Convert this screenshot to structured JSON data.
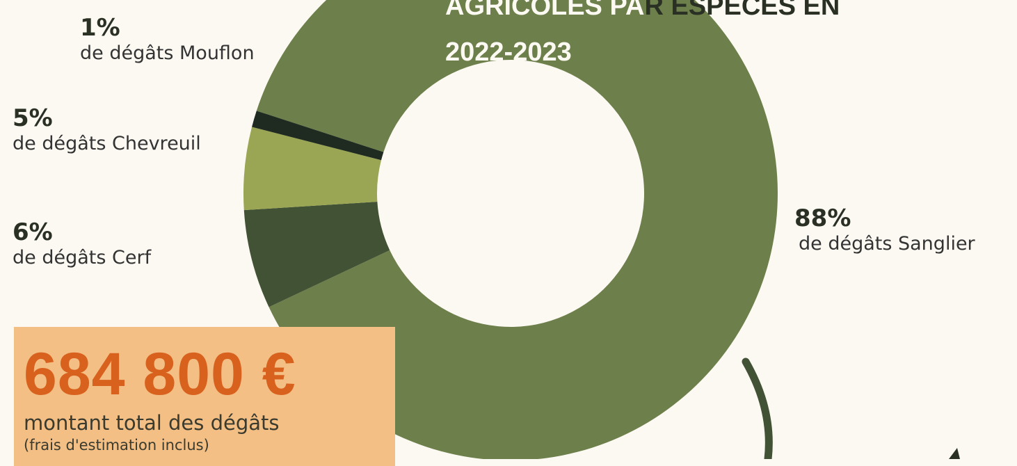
{
  "title": {
    "line1_head": "AGRICOLES PA",
    "line1_tail": "R ESPÈCES EN",
    "line2": "2022-2023"
  },
  "chart_data": {
    "type": "pie",
    "variant": "donut",
    "slices": [
      {
        "name": "Sanglier",
        "value": 88,
        "pct_label": "88%",
        "description": "de dégâts Sanglier",
        "color": "#6d7f4b"
      },
      {
        "name": "Cerf",
        "value": 6,
        "pct_label": "6%",
        "description": "de dégâts Cerf",
        "color": "#425234"
      },
      {
        "name": "Chevreuil",
        "value": 5,
        "pct_label": "5%",
        "description": "de dégâts Chevreuil",
        "color": "#9aa653"
      },
      {
        "name": "Mouflon",
        "value": 1,
        "pct_label": "1%",
        "description": "de dégâts Mouflon",
        "color": "#1f2a20"
      }
    ]
  },
  "total": {
    "amount": "684 800 €",
    "caption": "montant total des dégâts",
    "note": "(frais d'estimation inclus)"
  },
  "colors": {
    "background": "#fcf9f2",
    "accent_orange": "#d8611e",
    "box": "#f4bf84",
    "arc": "#425234"
  }
}
